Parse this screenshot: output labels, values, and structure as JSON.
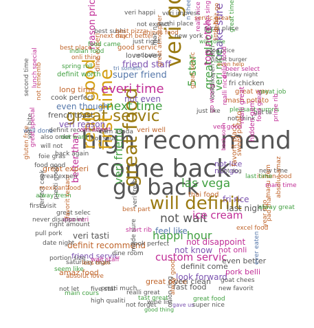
{
  "words": [
    {
      "text": "high recommend",
      "color": "#555555"
    },
    {
      "text": "come back",
      "color": "#555555"
    },
    {
      "text": "go back",
      "color": "#555555"
    },
    {
      "text": "veri good",
      "color": "#9a7a12"
    },
    {
      "text": "great servic",
      "color": "#9a7a12"
    },
    {
      "text": "great food",
      "color": "#9a7a12"
    },
    {
      "text": "will definit",
      "color": "#9a7a12"
    },
    {
      "text": "first time",
      "color": "#d4a017"
    },
    {
      "text": "realli good",
      "color": "#d4a017"
    },
    {
      "text": "everi time",
      "color": "#c02c96"
    },
    {
      "text": "next time",
      "color": "#3f9f3f"
    },
    {
      "text": "las vega",
      "color": "#3f9f3f"
    },
    {
      "text": "not wait",
      "color": "#555555"
    },
    {
      "text": "happi hour",
      "color": "#3f9f3f"
    },
    {
      "text": "ice cream",
      "color": "#c02c96"
    },
    {
      "text": "custom servic",
      "color": "#c02c96"
    },
    {
      "text": "veri friend",
      "color": "#3f9f3f"
    },
    {
      "text": "great place",
      "color": "#3f9f3f"
    },
    {
      "text": "make sure",
      "color": "#7b52b0"
    },
    {
      "text": "5 star",
      "color": "#3f9f3f"
    },
    {
      "text": "veri nice",
      "color": "#3f9f3f"
    },
    {
      "text": "top notch",
      "color": "#c02c96"
    },
    {
      "text": "friend staff",
      "color": "#7b52b0"
    },
    {
      "text": "super friend",
      "color": "#5577aa"
    },
    {
      "text": "reason price",
      "color": "#c02c96"
    },
    {
      "text": "not even",
      "color": "#7b52b0"
    },
    {
      "text": "even though",
      "color": "#5577aa"
    },
    {
      "text": "feel like",
      "color": "#5577aa"
    },
    {
      "text": "not disappoint",
      "color": "#c02c96"
    },
    {
      "text": "not know",
      "color": "#7b52b0"
    },
    {
      "text": "definit come",
      "color": "#555555"
    },
    {
      "text": "look forward",
      "color": "#7b52b0"
    },
    {
      "text": "better than",
      "color": "#c02c96"
    },
    {
      "text": "veri tasti",
      "color": "#555555"
    },
    {
      "text": "definit recommend",
      "color": "#c0652b"
    },
    {
      "text": "friend servic",
      "color": "#7b52b0"
    },
    {
      "text": "fri rice",
      "color": "#7b52b0"
    },
    {
      "text": "last night",
      "color": "#555555"
    },
    {
      "text": "not onli",
      "color": "#c02c96"
    },
    {
      "text": "even better",
      "color": "#555555"
    },
    {
      "text": "pork belli",
      "color": "#c02c96"
    },
    {
      "text": "not like",
      "color": "#7b52b0"
    },
    {
      "text": "not go",
      "color": "#7b52b0"
    },
    {
      "text": "thai food",
      "color": "#c0652b"
    },
    {
      "text": "amaz food",
      "color": "#c0652b"
    },
    {
      "text": "great experi",
      "color": "#c0652b"
    },
    {
      "text": "french toast",
      "color": "#555555"
    },
    {
      "text": "veri reason",
      "color": "#7b52b0"
    },
    {
      "text": "fast food",
      "color": "#555555"
    },
    {
      "text": "great price",
      "color": "#c0652b"
    },
    {
      "text": "veri clean",
      "color": "#555555"
    },
    {
      "text": "great atmospher",
      "color": "#c0652b"
    },
    {
      "text": "veri well",
      "color": "#c0652b"
    },
    {
      "text": "good servic",
      "color": "#c0652b"
    },
    {
      "text": "love love",
      "color": "#555555"
    },
    {
      "text": "long time",
      "color": "#c0652b"
    },
    {
      "text": "cook perfect",
      "color": "#555555"
    },
    {
      "text": "dine experi",
      "color": "#c0652b"
    },
    {
      "text": "definit worth",
      "color": "#3f9f3f"
    },
    {
      "text": "spring roll",
      "color": "#3f9f3f"
    },
    {
      "text": "onli thing",
      "color": "#c0652b"
    },
    {
      "text": "best place",
      "color": "#c0652b"
    },
    {
      "text": "indian food",
      "color": "#3f9f3f"
    },
    {
      "text": "food came",
      "color": "#3f9f3f"
    },
    {
      "text": "next day",
      "color": "#c0652b"
    },
    {
      "text": "best sushi",
      "color": "#555555"
    },
    {
      "text": "much better",
      "color": "#c0652b"
    },
    {
      "text": "best pizza",
      "color": "#c0652b"
    },
    {
      "text": "just right",
      "color": "#555555"
    },
    {
      "text": "veri happi",
      "color": "#555555"
    },
    {
      "text": "veri impress",
      "color": "#555555"
    },
    {
      "text": "servic great",
      "color": "#c0652b"
    },
    {
      "text": "not expect",
      "color": "#555555"
    },
    {
      "text": "sushi place",
      "color": "#555555"
    },
    {
      "text": "chines food",
      "color": "#c0652b"
    },
    {
      "text": "new york",
      "color": "#555555"
    },
    {
      "text": "pizza place",
      "color": "#555555"
    },
    {
      "text": "will come",
      "color": "#3f9f3f"
    },
    {
      "text": "good price",
      "color": "#555555"
    },
    {
      "text": "best burger",
      "color": "#555555"
    },
    {
      "text": "even help",
      "color": "#c0652b"
    },
    {
      "text": "beer select",
      "color": "#c02c96"
    },
    {
      "text": "friday night",
      "color": "#555555"
    },
    {
      "text": "fri chicken",
      "color": "#555555"
    },
    {
      "text": "great way",
      "color": "#c0652b"
    },
    {
      "text": "mash potato",
      "color": "#c0652b"
    },
    {
      "text": "pleasant surpris",
      "color": "#3f9f3f"
    },
    {
      "text": "not think",
      "color": "#555555"
    },
    {
      "text": "great job",
      "color": "#3f9f3f"
    },
    {
      "text": "got ta",
      "color": "#555555"
    },
    {
      "text": "veri delici",
      "color": "#555555"
    },
    {
      "text": "delici food",
      "color": "#c02c96"
    },
    {
      "text": "go wrong",
      "color": "#c02c96"
    },
    {
      "text": "realli nice",
      "color": "#c02c96"
    },
    {
      "text": "look like",
      "color": "#555555"
    },
    {
      "text": "prime rib",
      "color": "#c02c96"
    },
    {
      "text": "food great",
      "color": "#c02c96"
    },
    {
      "text": "hidden gem",
      "color": "#c02c96"
    },
    {
      "text": "realli great",
      "color": "#c02c96"
    },
    {
      "text": "new time",
      "color": "#555555"
    },
    {
      "text": "italian food",
      "color": "#c0652b"
    },
    {
      "text": "mani time",
      "color": "#c02c96"
    },
    {
      "text": "sweet potato",
      "color": "#c0652b"
    },
    {
      "text": "favorit place",
      "color": "#c0652b"
    },
    {
      "text": "pad thai",
      "color": "#c0652b"
    },
    {
      "text": "year ago",
      "color": "#c0652b"
    },
    {
      "text": "manu item",
      "color": "#c0652b"
    },
    {
      "text": "absolut amaz",
      "color": "#c0652b"
    },
    {
      "text": "excel food",
      "color": "#c0652b"
    },
    {
      "text": "last time",
      "color": "#3f9f3f"
    },
    {
      "text": "alway great",
      "color": "#3f9f3f"
    },
    {
      "text": "goat chees",
      "color": "#555555"
    },
    {
      "text": "new favorit",
      "color": "#555555"
    },
    {
      "text": "ever eaten",
      "color": "#5577aa"
    },
    {
      "text": "great food",
      "color": "#3f9f3f"
    },
    {
      "text": "gave us",
      "color": "#7b52b0"
    },
    {
      "text": "super nice",
      "color": "#555555"
    },
    {
      "text": "alway good",
      "color": "#c0652b"
    },
    {
      "text": "onion ring",
      "color": "#555555"
    },
    {
      "text": "wine list",
      "color": "#555555"
    },
    {
      "text": "good thing",
      "color": "#3f9f3f"
    },
    {
      "text": "not forget",
      "color": "#555555"
    },
    {
      "text": "tast great",
      "color": "#3f9f3f"
    },
    {
      "text": "realli great",
      "color": "#555555"
    },
    {
      "text": "pretti much",
      "color": "#555555"
    },
    {
      "text": "five star",
      "color": "#555555"
    },
    {
      "text": "high qualiti",
      "color": "#555555"
    },
    {
      "text": "main cours",
      "color": "#3f9f3f"
    },
    {
      "text": "not let",
      "color": "#555555"
    },
    {
      "text": "absolut love",
      "color": "#c0652b"
    },
    {
      "text": "seem like",
      "color": "#3f9f3f"
    },
    {
      "text": "portion size",
      "color": "#555555"
    },
    {
      "text": "date night",
      "color": "#555555"
    },
    {
      "text": "saturday night",
      "color": "#555555"
    },
    {
      "text": "less than",
      "color": "#c0652b"
    },
    {
      "text": "wait staff",
      "color": "#c02c96"
    },
    {
      "text": "also veri",
      "color": "#c02c96"
    },
    {
      "text": "great selec",
      "color": "#555555"
    },
    {
      "text": "right amount",
      "color": "#555555"
    },
    {
      "text": "pull pork",
      "color": "#555555"
    },
    {
      "text": "perfect cook",
      "color": "#555555"
    },
    {
      "text": "never disappoint",
      "color": "#555555"
    },
    {
      "text": "first visit",
      "color": "#555555"
    },
    {
      "text": "alway fresh",
      "color": "#3f9f3f"
    },
    {
      "text": "favorit restaur",
      "color": "#c0652b"
    },
    {
      "text": "pretti good",
      "color": "#555555"
    },
    {
      "text": "mexican food",
      "color": "#c0652b"
    },
    {
      "text": "back again",
      "color": "#555555"
    },
    {
      "text": "great experi",
      "color": "#555555"
    },
    {
      "text": "food good",
      "color": "#555555"
    },
    {
      "text": "will not",
      "color": "#555555"
    },
    {
      "text": "foie gras",
      "color": "#555555"
    },
    {
      "text": "also order",
      "color": "#555555"
    },
    {
      "text": "gluten free",
      "color": "#c0652b"
    },
    {
      "text": "well done",
      "color": "#5577aa"
    },
    {
      "text": "veri bite",
      "color": "#555555"
    },
    {
      "text": "great special",
      "color": "#c02c96"
    },
    {
      "text": "lunch special",
      "color": "#c02c96"
    },
    {
      "text": "second time",
      "color": "#555555"
    },
    {
      "text": "not rememb",
      "color": "#c0652b"
    },
    {
      "text": "not want",
      "color": "#3f9f3f"
    },
    {
      "text": "definit recommend",
      "color": "#555555"
    },
    {
      "text": "cook perfect",
      "color": "#555555"
    },
    {
      "text": "short rib",
      "color": "#c02c96"
    },
    {
      "text": "made sure",
      "color": "#555555"
    },
    {
      "text": "dine room",
      "color": "#555555"
    },
    {
      "text": "best part",
      "color": "#c0652b"
    },
    {
      "text": "veri fresh",
      "color": "#555555"
    },
    {
      "text": "veri attent",
      "color": "#c02c96"
    },
    {
      "text": "cam asada",
      "color": "#555555"
    },
    {
      "text": "not sauc",
      "color": "#555555"
    },
    {
      "text": "not believ",
      "color": "#555555"
    },
    {
      "text": "tri someth",
      "color": "#5577aa"
    },
    {
      "text": "mac n",
      "color": "#555555"
    },
    {
      "text": "n chees",
      "color": "#5577aa"
    },
    {
      "text": "definit go",
      "color": "#c0652b"
    },
    {
      "text": "great servic",
      "color": "#c0652b"
    },
    {
      "text": "great time",
      "color": "#3f9f3f"
    },
    {
      "text": "everi singl",
      "color": "#c02c96"
    },
    {
      "text": "realli nice",
      "color": "#c02c96"
    },
    {
      "text": "little bit",
      "color": "#c0652b"
    },
    {
      "text": "veri good",
      "color": "#c02c96"
    },
    {
      "text": "just like",
      "color": "#555555"
    },
    {
      "text": "back soon",
      "color": "#c02c96"
    },
    {
      "text": "hot dog",
      "color": "#555555"
    },
    {
      "text": "not eat",
      "color": "#555555"
    },
    {
      "text": "veri not",
      "color": "#555555"
    },
    {
      "text": "12",
      "color": "#555555"
    }
  ]
}
